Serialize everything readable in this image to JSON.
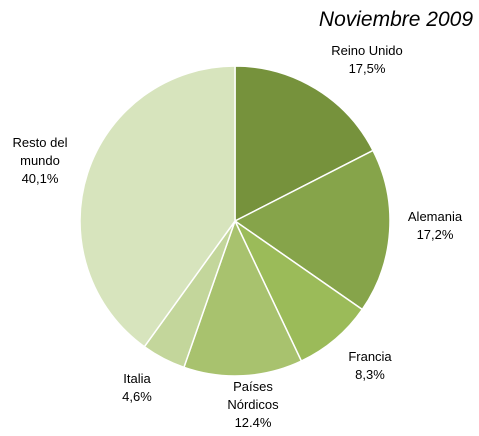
{
  "chart_data": {
    "type": "pie",
    "title": "Noviembre 2009",
    "categories": [
      "Reino Unido",
      "Alemania",
      "Francia",
      "Países Nórdicos",
      "Italia",
      "Resto del mundo"
    ],
    "values": [
      17.5,
      17.2,
      8.3,
      12.4,
      4.6,
      40.1
    ],
    "value_labels": [
      "17,5%",
      "17,2%",
      "8,3%",
      "12.4%",
      "4,6%",
      "40,1%"
    ],
    "colors": [
      "#76923c",
      "#86a44a",
      "#9bbb59",
      "#a8c26e",
      "#c3d69b",
      "#d7e4bd"
    ]
  }
}
